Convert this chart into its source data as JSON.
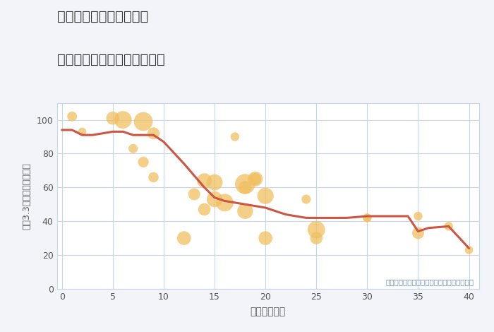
{
  "title_line1": "千葉県市原市五井中央東",
  "title_line2": "築年数別中古マンション価格",
  "xlabel": "築年数（年）",
  "ylabel": "坪（3.3㎡）単価（万円）",
  "annotation": "円の大きさは、取引のあった物件面積を示す",
  "background_color": "#f2f4f9",
  "plot_bg_color": "#ffffff",
  "grid_color": "#c8d4e8",
  "bubble_color": "#f0c060",
  "bubble_alpha": 0.75,
  "line_color": "#cc5544",
  "line_width": 2.2,
  "xlim": [
    -0.5,
    41
  ],
  "ylim": [
    0,
    110
  ],
  "xticks": [
    0,
    5,
    10,
    15,
    20,
    25,
    30,
    35,
    40
  ],
  "yticks": [
    0,
    20,
    40,
    60,
    80,
    100
  ],
  "scatter_x": [
    1,
    2,
    5,
    6,
    7,
    8,
    8,
    9,
    9,
    12,
    13,
    14,
    14,
    15,
    15,
    16,
    17,
    18,
    18,
    18,
    19,
    19,
    20,
    20,
    24,
    25,
    25,
    30,
    30,
    35,
    35,
    38,
    40
  ],
  "scatter_y": [
    102,
    93,
    101,
    100,
    83,
    99,
    75,
    92,
    66,
    30,
    56,
    64,
    47,
    63,
    53,
    51,
    90,
    62,
    60,
    46,
    65,
    65,
    55,
    30,
    53,
    35,
    30,
    42,
    42,
    43,
    33,
    37,
    23
  ],
  "scatter_size": [
    100,
    70,
    180,
    320,
    90,
    370,
    120,
    150,
    110,
    200,
    150,
    230,
    160,
    270,
    260,
    320,
    80,
    420,
    180,
    260,
    230,
    150,
    280,
    200,
    90,
    320,
    160,
    80,
    70,
    80,
    150,
    80,
    70
  ],
  "line_x": [
    0,
    1,
    2,
    3,
    5,
    6,
    7,
    8,
    9,
    10,
    12,
    14,
    15,
    16,
    17,
    18,
    19,
    20,
    22,
    24,
    25,
    28,
    30,
    32,
    34,
    35,
    36,
    38,
    40
  ],
  "line_y": [
    94,
    94,
    91,
    91,
    93,
    93,
    91,
    91,
    91,
    87,
    74,
    60,
    54,
    52,
    51,
    50,
    49,
    48,
    44,
    42,
    42,
    42,
    43,
    43,
    43,
    34,
    36,
    37,
    24
  ]
}
